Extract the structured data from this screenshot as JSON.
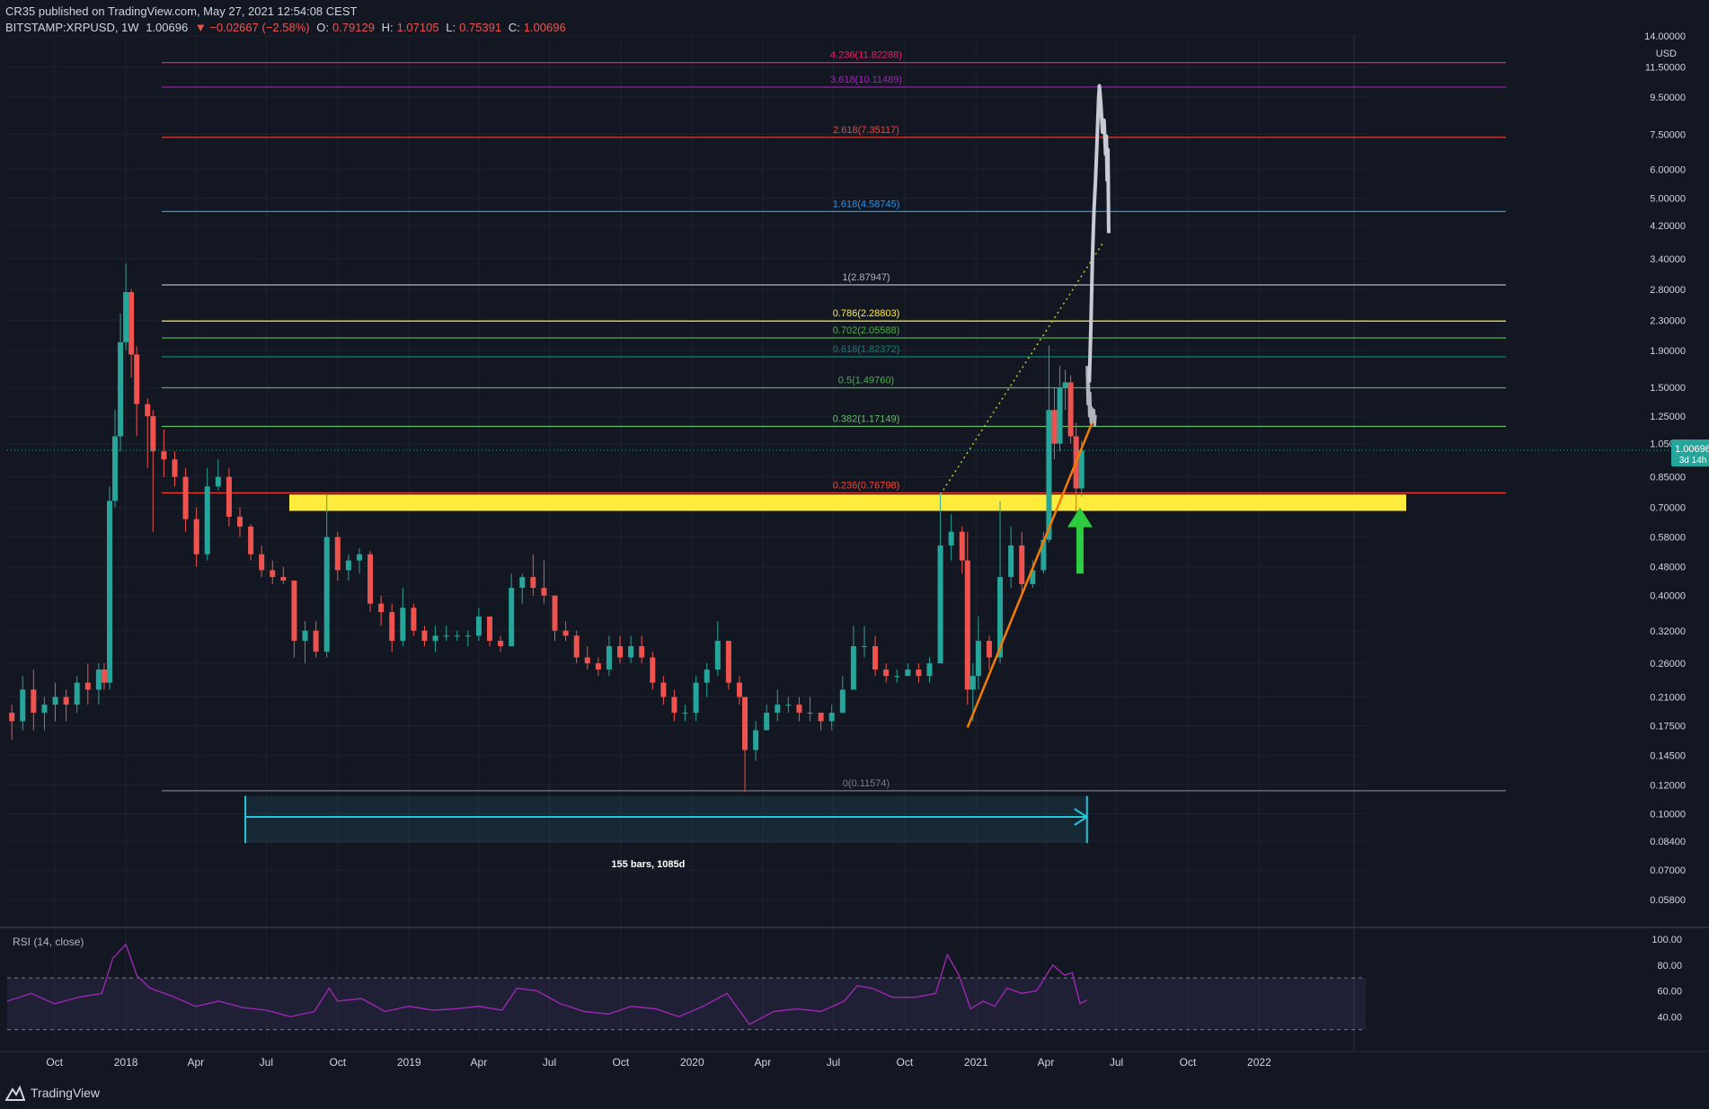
{
  "header": {
    "published": "CR35 published on TradingView.com, May 27, 2021 12:54:08 CEST",
    "symbol": "BITSTAMP:XRPUSD, 1W",
    "last": "1.00696",
    "change": "▼ −0.02667 (−2.58%)",
    "o_label": "O:",
    "o": "0.79129",
    "h_label": "H:",
    "h": "1.07105",
    "l_label": "L:",
    "l": "0.75391",
    "c_label": "C:",
    "c": "1.00696"
  },
  "footer": {
    "brand": "TradingView"
  },
  "colors": {
    "background": "#131722",
    "up": "#26a69a",
    "down": "#ef5350",
    "grid": "#1e222d",
    "rsi": "#9c27b0",
    "support_zone": "#ffeb3b",
    "trendline": "#f57c00",
    "arrow": "#2ecc40",
    "measure": "#26c6da"
  },
  "chart_data": {
    "type": "candlestick",
    "scale": "log",
    "currency": "USD",
    "y_ticks": [
      "14.00000",
      "11.50000",
      "9.50000",
      "7.50000",
      "6.00000",
      "5.00000",
      "4.20000",
      "3.40000",
      "2.80000",
      "2.30000",
      "1.90000",
      "1.50000",
      "1.25000",
      "1.05000",
      "0.85000",
      "0.70000",
      "0.58000",
      "0.48000",
      "0.40000",
      "0.32000",
      "0.26000",
      "0.21000",
      "0.17500",
      "0.14500",
      "0.12000",
      "0.10000",
      "0.08400",
      "0.07000",
      "0.05800"
    ],
    "x_ticks": [
      "Oct",
      "2018",
      "Apr",
      "Jul",
      "Oct",
      "2019",
      "Apr",
      "Jul",
      "Oct",
      "2020",
      "Apr",
      "Jul",
      "Oct",
      "2021",
      "Apr",
      "Jul",
      "Oct",
      "2022"
    ],
    "x_range": [
      "2017-08-01",
      "2022-05-01"
    ],
    "y_range": [
      0.052,
      14.0
    ],
    "last_price": {
      "value": "1.00696",
      "countdown": "3d 14h"
    },
    "fib_levels": [
      {
        "ratio": "4.236",
        "value": 11.82288,
        "label": "4.236(11.82288)",
        "color": "#e91e63"
      },
      {
        "ratio": "3.618",
        "value": 10.11489,
        "label": "3.618(10.11489)",
        "color": "#9c27b0"
      },
      {
        "ratio": "2.618",
        "value": 7.35117,
        "label": "2.618(7.35117)",
        "color": "#f44336"
      },
      {
        "ratio": "1.618",
        "value": 4.58745,
        "label": "1.618(4.58745)",
        "color": "#2196f3"
      },
      {
        "ratio": "1",
        "value": 2.87947,
        "label": "1(2.87947)",
        "color": "#b2b5be"
      },
      {
        "ratio": "0.786",
        "value": 2.28803,
        "label": "0.786(2.28803)",
        "color": "#ffeb3b"
      },
      {
        "ratio": "0.702",
        "value": 2.05588,
        "label": "0.702(2.05588)",
        "color": "#4caf50"
      },
      {
        "ratio": "0.618",
        "value": 1.82372,
        "label": "0.618(1.82372)",
        "color": "#00897b"
      },
      {
        "ratio": "0.5",
        "value": 1.4976,
        "label": "0.5(1.49760)",
        "color": "#4caf50"
      },
      {
        "ratio": "0.382",
        "value": 1.17149,
        "label": "0.382(1.17149)",
        "color": "#66bb6a"
      },
      {
        "ratio": "0.236",
        "value": 0.76798,
        "label": "0.236(0.76798)",
        "color": "#f44336"
      },
      {
        "ratio": "0",
        "value": 0.11574,
        "label": "0(0.11574)",
        "color": "#787b86"
      }
    ],
    "fib_start": "2017-12-25",
    "fib_end": "2021-09-20",
    "support_zone": {
      "from": "2018-05-14",
      "to": "2021-06-01",
      "low": 0.685,
      "high": 0.76
    },
    "trendline": [
      [
        "2020-12-21",
        0.173
      ],
      [
        "2021-06-01",
        1.22
      ]
    ],
    "dotted_projection": [
      [
        "2020-11-16",
        0.76
      ],
      [
        "2021-06-15",
        3.8
      ]
    ],
    "green_arrow": {
      "date": "2021-05-15",
      "from": 0.46,
      "to": 0.7
    },
    "measure": {
      "from": "2018-06-04",
      "to": "2021-05-24",
      "y": 0.098,
      "band_low": 0.083,
      "label": "155 bars, 1085d"
    },
    "projection_path": [
      [
        "2021-05-27",
        1.55
      ],
      [
        "2021-05-29",
        2.2
      ],
      [
        "2021-05-31",
        3.4
      ],
      [
        "2021-06-02",
        4.6
      ],
      [
        "2021-06-04",
        5.6
      ],
      [
        "2021-06-06",
        7.2
      ],
      [
        "2021-06-08",
        9.4
      ],
      [
        "2021-06-09",
        10.2
      ],
      [
        "2021-06-11",
        9.0
      ],
      [
        "2021-06-13",
        7.6
      ],
      [
        "2021-06-15",
        8.2
      ],
      [
        "2021-06-17",
        6.6
      ],
      [
        "2021-06-18",
        7.4
      ],
      [
        "2021-06-19",
        5.6
      ],
      [
        "2021-06-20",
        6.8
      ],
      [
        "2021-06-21",
        4.0
      ]
    ],
    "projection_chop": [
      [
        "2021-05-24",
        1.72
      ],
      [
        "2021-05-25",
        1.35
      ],
      [
        "2021-05-26",
        1.62
      ],
      [
        "2021-05-27",
        1.25
      ],
      [
        "2021-05-28",
        1.45
      ],
      [
        "2021-05-29",
        1.2
      ],
      [
        "2021-05-30",
        1.32
      ],
      [
        "2021-06-01",
        1.22
      ],
      [
        "2021-06-02",
        1.3
      ],
      [
        "2021-06-03",
        1.18
      ],
      [
        "2021-06-04",
        1.26
      ]
    ],
    "ohlc": [
      [
        "2017-08-07",
        0.19,
        0.2,
        0.16,
        0.18
      ],
      [
        "2017-08-21",
        0.18,
        0.24,
        0.17,
        0.22
      ],
      [
        "2017-09-04",
        0.22,
        0.25,
        0.17,
        0.19
      ],
      [
        "2017-09-18",
        0.19,
        0.21,
        0.17,
        0.2
      ],
      [
        "2017-10-02",
        0.2,
        0.23,
        0.18,
        0.21
      ],
      [
        "2017-10-16",
        0.21,
        0.22,
        0.18,
        0.2
      ],
      [
        "2017-10-30",
        0.2,
        0.24,
        0.19,
        0.23
      ],
      [
        "2017-11-13",
        0.23,
        0.26,
        0.2,
        0.22
      ],
      [
        "2017-11-27",
        0.22,
        0.26,
        0.2,
        0.25
      ],
      [
        "2017-12-04",
        0.25,
        0.26,
        0.22,
        0.23
      ],
      [
        "2017-12-11",
        0.23,
        0.8,
        0.22,
        0.73
      ],
      [
        "2017-12-18",
        0.73,
        1.3,
        0.7,
        1.1
      ],
      [
        "2017-12-25",
        1.1,
        2.4,
        1.0,
        2.0
      ],
      [
        "2018-01-01",
        2.0,
        3.3,
        1.9,
        2.75
      ],
      [
        "2018-01-08",
        2.75,
        2.8,
        1.6,
        1.85
      ],
      [
        "2018-01-15",
        1.85,
        1.95,
        1.1,
        1.35
      ],
      [
        "2018-01-29",
        1.35,
        1.4,
        0.9,
        1.25
      ],
      [
        "2018-02-05",
        1.25,
        1.3,
        0.6,
        1.0
      ],
      [
        "2018-02-19",
        1.0,
        1.15,
        0.85,
        0.95
      ],
      [
        "2018-03-05",
        0.95,
        1.0,
        0.8,
        0.85
      ],
      [
        "2018-03-19",
        0.85,
        0.9,
        0.6,
        0.65
      ],
      [
        "2018-04-02",
        0.65,
        0.7,
        0.48,
        0.52
      ],
      [
        "2018-04-16",
        0.52,
        0.9,
        0.5,
        0.8
      ],
      [
        "2018-04-30",
        0.8,
        0.95,
        0.78,
        0.85
      ],
      [
        "2018-05-14",
        0.85,
        0.9,
        0.62,
        0.66
      ],
      [
        "2018-05-28",
        0.66,
        0.7,
        0.58,
        0.62
      ],
      [
        "2018-06-11",
        0.62,
        0.63,
        0.5,
        0.52
      ],
      [
        "2018-06-25",
        0.52,
        0.55,
        0.45,
        0.47
      ],
      [
        "2018-07-09",
        0.47,
        0.5,
        0.43,
        0.45
      ],
      [
        "2018-07-23",
        0.45,
        0.48,
        0.43,
        0.44
      ],
      [
        "2018-08-06",
        0.44,
        0.44,
        0.27,
        0.3
      ],
      [
        "2018-08-20",
        0.3,
        0.34,
        0.26,
        0.32
      ],
      [
        "2018-09-03",
        0.32,
        0.34,
        0.27,
        0.28
      ],
      [
        "2018-09-17",
        0.28,
        0.76,
        0.27,
        0.58
      ],
      [
        "2018-10-01",
        0.58,
        0.6,
        0.44,
        0.47
      ],
      [
        "2018-10-15",
        0.47,
        0.52,
        0.44,
        0.5
      ],
      [
        "2018-10-29",
        0.5,
        0.54,
        0.46,
        0.52
      ],
      [
        "2018-11-12",
        0.52,
        0.53,
        0.36,
        0.38
      ],
      [
        "2018-11-26",
        0.38,
        0.4,
        0.33,
        0.36
      ],
      [
        "2018-12-10",
        0.36,
        0.38,
        0.28,
        0.3
      ],
      [
        "2018-12-24",
        0.3,
        0.42,
        0.29,
        0.37
      ],
      [
        "2019-01-07",
        0.37,
        0.38,
        0.31,
        0.32
      ],
      [
        "2019-01-21",
        0.32,
        0.33,
        0.29,
        0.3
      ],
      [
        "2019-02-04",
        0.3,
        0.33,
        0.28,
        0.31
      ],
      [
        "2019-02-18",
        0.31,
        0.33,
        0.3,
        0.31
      ],
      [
        "2019-03-04",
        0.31,
        0.32,
        0.3,
        0.31
      ],
      [
        "2019-03-18",
        0.31,
        0.32,
        0.29,
        0.31
      ],
      [
        "2019-04-01",
        0.31,
        0.37,
        0.3,
        0.35
      ],
      [
        "2019-04-15",
        0.35,
        0.35,
        0.29,
        0.3
      ],
      [
        "2019-04-29",
        0.3,
        0.31,
        0.28,
        0.29
      ],
      [
        "2019-05-13",
        0.29,
        0.46,
        0.29,
        0.42
      ],
      [
        "2019-05-27",
        0.42,
        0.46,
        0.38,
        0.45
      ],
      [
        "2019-06-10",
        0.45,
        0.52,
        0.4,
        0.42
      ],
      [
        "2019-06-24",
        0.42,
        0.5,
        0.38,
        0.4
      ],
      [
        "2019-07-08",
        0.4,
        0.4,
        0.3,
        0.32
      ],
      [
        "2019-07-22",
        0.32,
        0.34,
        0.3,
        0.31
      ],
      [
        "2019-08-05",
        0.31,
        0.32,
        0.26,
        0.27
      ],
      [
        "2019-08-19",
        0.27,
        0.29,
        0.25,
        0.26
      ],
      [
        "2019-09-02",
        0.26,
        0.27,
        0.24,
        0.25
      ],
      [
        "2019-09-16",
        0.25,
        0.31,
        0.24,
        0.29
      ],
      [
        "2019-09-30",
        0.29,
        0.31,
        0.26,
        0.27
      ],
      [
        "2019-10-14",
        0.27,
        0.31,
        0.26,
        0.29
      ],
      [
        "2019-10-28",
        0.29,
        0.31,
        0.26,
        0.27
      ],
      [
        "2019-11-11",
        0.27,
        0.28,
        0.22,
        0.23
      ],
      [
        "2019-11-25",
        0.23,
        0.24,
        0.2,
        0.21
      ],
      [
        "2019-12-09",
        0.21,
        0.22,
        0.18,
        0.19
      ],
      [
        "2019-12-23",
        0.19,
        0.2,
        0.18,
        0.19
      ],
      [
        "2020-01-06",
        0.19,
        0.24,
        0.18,
        0.23
      ],
      [
        "2020-01-20",
        0.23,
        0.26,
        0.21,
        0.25
      ],
      [
        "2020-02-03",
        0.25,
        0.34,
        0.24,
        0.3
      ],
      [
        "2020-02-17",
        0.3,
        0.3,
        0.22,
        0.23
      ],
      [
        "2020-03-02",
        0.23,
        0.24,
        0.2,
        0.21
      ],
      [
        "2020-03-09",
        0.21,
        0.21,
        0.115,
        0.15
      ],
      [
        "2020-03-23",
        0.15,
        0.18,
        0.14,
        0.17
      ],
      [
        "2020-04-06",
        0.17,
        0.2,
        0.17,
        0.19
      ],
      [
        "2020-04-20",
        0.19,
        0.22,
        0.18,
        0.2
      ],
      [
        "2020-05-04",
        0.2,
        0.21,
        0.19,
        0.2
      ],
      [
        "2020-05-18",
        0.2,
        0.21,
        0.18,
        0.19
      ],
      [
        "2020-06-01",
        0.19,
        0.21,
        0.18,
        0.19
      ],
      [
        "2020-06-15",
        0.19,
        0.19,
        0.17,
        0.18
      ],
      [
        "2020-06-29",
        0.18,
        0.2,
        0.17,
        0.19
      ],
      [
        "2020-07-13",
        0.19,
        0.24,
        0.19,
        0.22
      ],
      [
        "2020-07-27",
        0.22,
        0.33,
        0.22,
        0.29
      ],
      [
        "2020-08-10",
        0.29,
        0.33,
        0.27,
        0.29
      ],
      [
        "2020-08-24",
        0.29,
        0.31,
        0.24,
        0.25
      ],
      [
        "2020-09-07",
        0.25,
        0.26,
        0.23,
        0.24
      ],
      [
        "2020-09-21",
        0.24,
        0.25,
        0.23,
        0.24
      ],
      [
        "2020-10-05",
        0.24,
        0.26,
        0.24,
        0.25
      ],
      [
        "2020-10-19",
        0.25,
        0.26,
        0.23,
        0.24
      ],
      [
        "2020-11-02",
        0.24,
        0.27,
        0.23,
        0.26
      ],
      [
        "2020-11-16",
        0.26,
        0.77,
        0.26,
        0.55
      ],
      [
        "2020-11-30",
        0.55,
        0.67,
        0.5,
        0.6
      ],
      [
        "2020-12-14",
        0.6,
        0.62,
        0.46,
        0.5
      ],
      [
        "2020-12-21",
        0.5,
        0.6,
        0.2,
        0.22
      ],
      [
        "2020-12-28",
        0.22,
        0.26,
        0.18,
        0.24
      ],
      [
        "2021-01-04",
        0.24,
        0.35,
        0.22,
        0.3
      ],
      [
        "2021-01-18",
        0.3,
        0.31,
        0.25,
        0.27
      ],
      [
        "2021-02-01",
        0.27,
        0.73,
        0.26,
        0.45
      ],
      [
        "2021-02-15",
        0.45,
        0.62,
        0.42,
        0.55
      ],
      [
        "2021-03-01",
        0.55,
        0.6,
        0.4,
        0.43
      ],
      [
        "2021-03-15",
        0.43,
        0.5,
        0.42,
        0.47
      ],
      [
        "2021-03-29",
        0.47,
        0.6,
        0.46,
        0.57
      ],
      [
        "2021-04-05",
        0.57,
        1.96,
        0.56,
        1.3
      ],
      [
        "2021-04-12",
        1.3,
        1.5,
        0.95,
        1.05
      ],
      [
        "2021-04-19",
        1.05,
        1.72,
        1.0,
        1.5
      ],
      [
        "2021-04-26",
        1.5,
        1.68,
        1.3,
        1.55
      ],
      [
        "2021-05-03",
        1.55,
        1.62,
        1.05,
        1.1
      ],
      [
        "2021-05-10",
        1.1,
        1.2,
        0.68,
        0.79
      ],
      [
        "2021-05-17",
        0.79,
        1.07,
        0.75,
        1.00696
      ]
    ],
    "rsi": {
      "label": "RSI (14, close)",
      "levels": [
        70,
        30
      ],
      "y_ticks": [
        "100.00",
        "80.00",
        "60.00",
        "40.00"
      ],
      "range": [
        20,
        100
      ],
      "values": [
        [
          "2017-08-01",
          52
        ],
        [
          "2017-09-01",
          58
        ],
        [
          "2017-10-01",
          50
        ],
        [
          "2017-11-01",
          55
        ],
        [
          "2017-12-01",
          58
        ],
        [
          "2017-12-15",
          85
        ],
        [
          "2018-01-01",
          96
        ],
        [
          "2018-01-15",
          72
        ],
        [
          "2018-02-01",
          62
        ],
        [
          "2018-03-01",
          56
        ],
        [
          "2018-04-01",
          48
        ],
        [
          "2018-05-01",
          52
        ],
        [
          "2018-06-01",
          47
        ],
        [
          "2018-07-01",
          45
        ],
        [
          "2018-08-01",
          40
        ],
        [
          "2018-09-01",
          44
        ],
        [
          "2018-09-20",
          62
        ],
        [
          "2018-10-01",
          52
        ],
        [
          "2018-11-01",
          54
        ],
        [
          "2018-12-01",
          44
        ],
        [
          "2019-01-01",
          48
        ],
        [
          "2019-02-01",
          45
        ],
        [
          "2019-03-01",
          46
        ],
        [
          "2019-04-01",
          48
        ],
        [
          "2019-05-01",
          45
        ],
        [
          "2019-05-20",
          62
        ],
        [
          "2019-06-15",
          60
        ],
        [
          "2019-07-15",
          50
        ],
        [
          "2019-08-15",
          44
        ],
        [
          "2019-09-15",
          42
        ],
        [
          "2019-10-15",
          48
        ],
        [
          "2019-11-15",
          46
        ],
        [
          "2019-12-15",
          40
        ],
        [
          "2020-01-15",
          48
        ],
        [
          "2020-02-15",
          58
        ],
        [
          "2020-03-15",
          34
        ],
        [
          "2020-04-15",
          44
        ],
        [
          "2020-05-15",
          46
        ],
        [
          "2020-06-15",
          44
        ],
        [
          "2020-07-15",
          52
        ],
        [
          "2020-08-01",
          64
        ],
        [
          "2020-08-20",
          62
        ],
        [
          "2020-09-15",
          55
        ],
        [
          "2020-10-15",
          55
        ],
        [
          "2020-11-10",
          58
        ],
        [
          "2020-11-25",
          88
        ],
        [
          "2020-12-10",
          72
        ],
        [
          "2020-12-25",
          46
        ],
        [
          "2021-01-10",
          52
        ],
        [
          "2021-01-25",
          48
        ],
        [
          "2021-02-10",
          62
        ],
        [
          "2021-03-01",
          58
        ],
        [
          "2021-03-20",
          60
        ],
        [
          "2021-04-10",
          80
        ],
        [
          "2021-04-25",
          72
        ],
        [
          "2021-05-05",
          74
        ],
        [
          "2021-05-15",
          50
        ],
        [
          "2021-05-24",
          53
        ]
      ]
    }
  }
}
